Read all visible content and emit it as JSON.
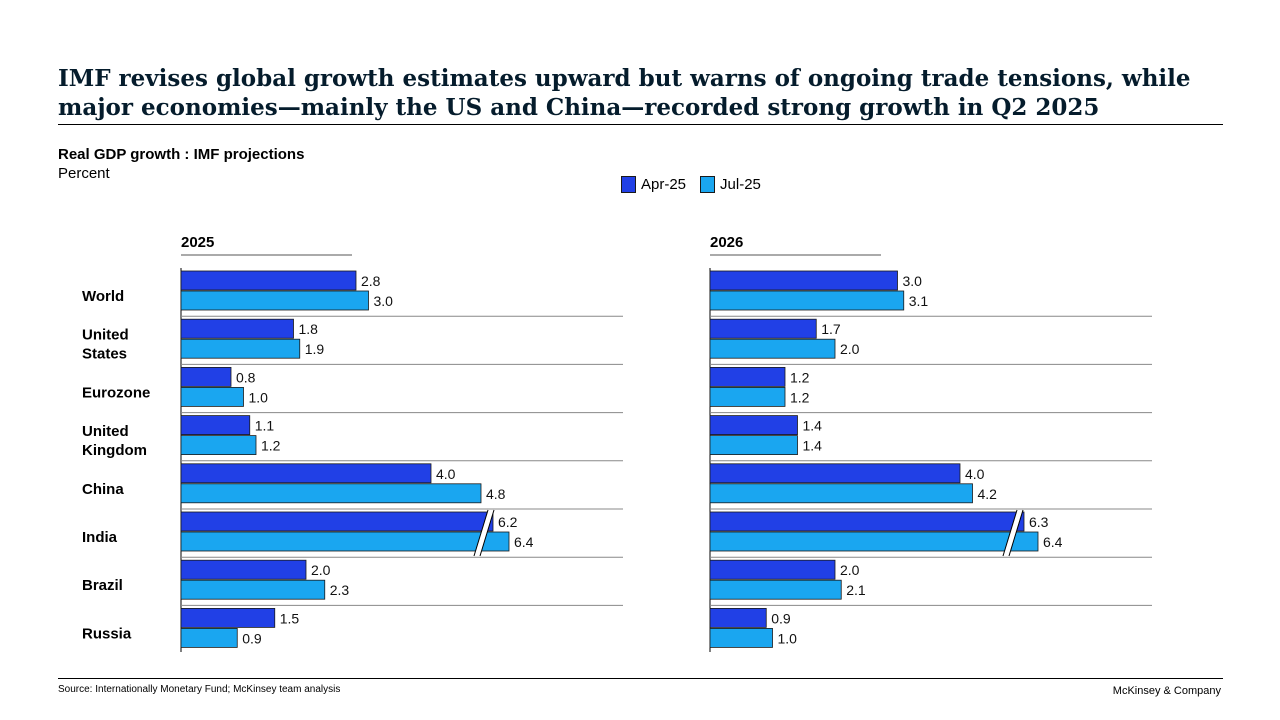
{
  "title": "IMF revises global growth estimates upward but warns of ongoing trade tensions, while major economies—mainly the US and China—recorded strong growth in Q2 2025",
  "chart_data": {
    "type": "bar",
    "orientation": "horizontal",
    "title": "Real GDP growth : IMF projections",
    "unit": "Percent",
    "categories": [
      "World",
      "United States",
      "Eurozone",
      "United Kingdom",
      "China",
      "India",
      "Brazil",
      "Russia"
    ],
    "category_lines": [
      [
        "World"
      ],
      [
        "United",
        "States"
      ],
      [
        "Eurozone"
      ],
      [
        "United",
        "Kingdom"
      ],
      [
        "China"
      ],
      [
        "India"
      ],
      [
        "Brazil"
      ],
      [
        "Russia"
      ]
    ],
    "series_names": [
      "Apr-25",
      "Jul-25"
    ],
    "colors": [
      "#2140e6",
      "#1aa6f0"
    ],
    "panels": [
      {
        "label": "2025",
        "series": [
          {
            "name": "Apr-25",
            "values": [
              2.8,
              1.8,
              0.8,
              1.1,
              4.0,
              6.2,
              2.0,
              1.5
            ]
          },
          {
            "name": "Jul-25",
            "values": [
              3.0,
              1.9,
              1.0,
              1.2,
              4.8,
              6.4,
              2.3,
              0.9
            ]
          }
        ]
      },
      {
        "label": "2026",
        "series": [
          {
            "name": "Apr-25",
            "values": [
              3.0,
              1.7,
              1.2,
              1.4,
              4.0,
              6.3,
              2.0,
              0.9
            ]
          },
          {
            "name": "Jul-25",
            "values": [
              3.1,
              2.0,
              1.2,
              1.4,
              4.2,
              6.4,
              2.1,
              1.0
            ]
          }
        ]
      }
    ],
    "broken_axis_category": "India",
    "legend_position": "top-center"
  },
  "footer": {
    "source": "Source: Internationally Monetary Fund; McKinsey team analysis",
    "brand": "McKinsey & Company"
  }
}
